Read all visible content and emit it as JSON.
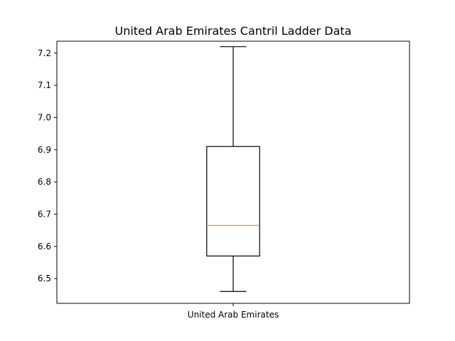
{
  "chart_data": {
    "type": "boxplot",
    "title": "United Arab Emirates Cantril Ladder Data",
    "xlabel": "",
    "ylabel": "",
    "categories": [
      "United Arab Emirates"
    ],
    "boxes": [
      {
        "name": "United Arab Emirates",
        "whisker_low": 6.46,
        "q1": 6.57,
        "median": 6.665,
        "q3": 6.91,
        "whisker_high": 7.22
      }
    ],
    "ylim": [
      6.423,
      7.237
    ],
    "yticks": [
      6.5,
      6.6,
      6.7,
      6.8,
      6.9,
      7.0,
      7.1,
      7.2
    ],
    "ytick_labels": [
      "6.5",
      "6.6",
      "6.7",
      "6.8",
      "6.9",
      "7.0",
      "7.1",
      "7.2"
    ],
    "grid": false,
    "colors": {
      "box": "#000000",
      "median": "#ff7f0e"
    }
  }
}
